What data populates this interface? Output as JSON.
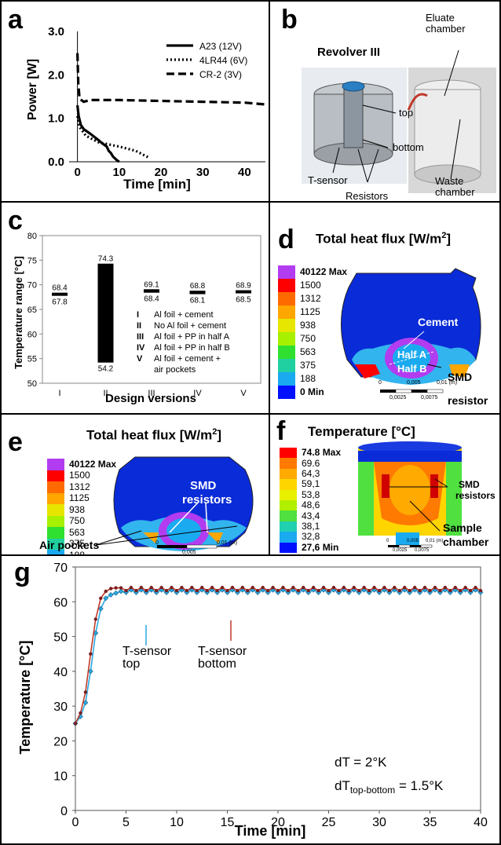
{
  "panels": {
    "a": {
      "label": "a"
    },
    "b": {
      "label": "b",
      "title": "Revolver III",
      "callouts": [
        "Eluate chamber",
        "top",
        "bottom",
        "T-sensor",
        "Resistors",
        "Waste chamber"
      ]
    },
    "c": {
      "label": "c",
      "legend": [
        {
          "num": "I",
          "text": "Al foil + cement"
        },
        {
          "num": "II",
          "text": "No Al foil + cement"
        },
        {
          "num": "III",
          "text": "Al foil + PP in half A"
        },
        {
          "num": "IV",
          "text": "Al foil + PP in half B"
        },
        {
          "num": "V",
          "text": "Al foil + cement +"
        },
        {
          "num": "",
          "text": "air pockets"
        }
      ]
    },
    "d": {
      "label": "d",
      "title": "Total heat flux [W/m",
      "title_sup": "2",
      "title_end": "]",
      "scale": [
        "40122 Max",
        "1500",
        "1312",
        "1125",
        "938",
        "750",
        "563",
        "375",
        "188",
        "0 Min"
      ],
      "annotations": [
        "Cement",
        "Half A",
        "Half B",
        "SMD",
        "resistor"
      ],
      "ruler": [
        "0",
        "0,005",
        "0,01 (m)",
        "0,0025",
        "0,0075"
      ]
    },
    "e": {
      "label": "e",
      "title": "Total heat flux [W/m",
      "title_sup": "2",
      "title_end": "]",
      "scale": [
        "40122 Max",
        "1500",
        "1312",
        "1125",
        "938",
        "750",
        "563",
        "375",
        "188",
        "0 Min"
      ],
      "annotations": [
        "SMD",
        "resistors",
        "Air pockets"
      ],
      "ruler": [
        "0",
        "0,005",
        "0,01 (m)"
      ]
    },
    "f": {
      "label": "f",
      "title": "Temperature [°C]",
      "scale": [
        "74.8 Max",
        "69.6",
        "64,3",
        "59,1",
        "53,8",
        "48,6",
        "43,4",
        "38,1",
        "32,8",
        "27,6 Min"
      ],
      "annotations": [
        "SMD",
        "resistors",
        "Sample",
        "chamber"
      ],
      "ruler": [
        "0",
        "0,005",
        "0,01 (m)",
        "0,0025",
        "0,0075"
      ]
    },
    "g": {
      "label": "g",
      "annotations": {
        "top_a": "T-sensor",
        "top_b": "top",
        "bot_a": "T-sensor",
        "bot_b": "bottom",
        "dt": "dT = 2°K",
        "dt2_a": "dT",
        "dt2_sub": "top-bottom",
        "dt2_b": " = 1.5°K"
      }
    }
  },
  "scale_colors": [
    "#b23cf0",
    "#ff0000",
    "#ff6a00",
    "#ffa600",
    "#e6e600",
    "#a6f000",
    "#30e030",
    "#20d0a0",
    "#1aaaf0",
    "#0010ff"
  ],
  "temp_colors": [
    "#ff0000",
    "#ff7a00",
    "#ffaa00",
    "#ffd500",
    "#e8f000",
    "#b0f000",
    "#50e040",
    "#20d0b0",
    "#1aaaf0",
    "#0010ff"
  ],
  "chart_data": [
    {
      "type": "line",
      "panel": "a",
      "xlabel": "Time [min]",
      "ylabel": "Power [W]",
      "xlim": [
        -2,
        45
      ],
      "ylim": [
        0,
        3
      ],
      "xticks": [
        0,
        10,
        20,
        30,
        40
      ],
      "yticks": [
        "0.0",
        "1.0",
        "2.0",
        "3.0"
      ],
      "series": [
        {
          "name": "A23 (12V)",
          "style": "solid",
          "points": [
            [
              0,
              1.3
            ],
            [
              0.3,
              1.05
            ],
            [
              0.8,
              0.85
            ],
            [
              1.5,
              0.75
            ],
            [
              3,
              0.65
            ],
            [
              5,
              0.5
            ],
            [
              6,
              0.42
            ],
            [
              7,
              0.35
            ],
            [
              7.5,
              0.25
            ],
            [
              8,
              0.2
            ],
            [
              8.5,
              0.12
            ],
            [
              9.5,
              0.03
            ],
            [
              10,
              0
            ]
          ]
        },
        {
          "name": "4LR44 (6V)",
          "style": "dotted",
          "points": [
            [
              0,
              1.05
            ],
            [
              0.5,
              0.8
            ],
            [
              2,
              0.6
            ],
            [
              5,
              0.45
            ],
            [
              10,
              0.35
            ],
            [
              14,
              0.25
            ],
            [
              17,
              0.1
            ]
          ]
        },
        {
          "name": "CR-2 (3V)",
          "style": "dashed",
          "points": [
            [
              0,
              2.5
            ],
            [
              0.2,
              1.8
            ],
            [
              0.5,
              1.45
            ],
            [
              1.5,
              1.38
            ],
            [
              3,
              1.42
            ],
            [
              10,
              1.42
            ],
            [
              20,
              1.4
            ],
            [
              30,
              1.38
            ],
            [
              40,
              1.36
            ],
            [
              45,
              1.32
            ]
          ]
        }
      ]
    },
    {
      "type": "bar",
      "panel": "c",
      "xlabel": "Design versions",
      "ylabel": "Temperature range [°C]",
      "categories": [
        "I",
        "II",
        "III",
        "IV",
        "V"
      ],
      "ylim": [
        50,
        80
      ],
      "yticks": [
        50,
        55,
        60,
        65,
        70,
        75,
        80
      ],
      "ranges": [
        {
          "low": 67.8,
          "high": 68.4,
          "low_label": "67.8",
          "high_label": "68.4"
        },
        {
          "low": 54.2,
          "high": 74.3,
          "low_label": "54.2",
          "high_label": "74.3"
        },
        {
          "low": 68.4,
          "high": 69.1,
          "low_label": "68.4",
          "high_label": "69.1"
        },
        {
          "low": 68.1,
          "high": 68.8,
          "low_label": "68.1",
          "high_label": "68.8"
        },
        {
          "low": 68.5,
          "high": 68.9,
          "low_label": "68.5",
          "high_label": "68.9"
        }
      ]
    },
    {
      "type": "line",
      "panel": "g",
      "xlabel": "Time [min]",
      "ylabel": "Temperature [°C]",
      "xlim": [
        0,
        40
      ],
      "ylim": [
        0,
        70
      ],
      "xticks": [
        0,
        5,
        10,
        15,
        20,
        25,
        30,
        35,
        40
      ],
      "yticks": [
        0,
        10,
        20,
        30,
        40,
        50,
        60,
        70
      ],
      "series": [
        {
          "name": "top",
          "color": "#29a9e0",
          "x": [
            0,
            0.5,
            1,
            1.5,
            2,
            2.5,
            3,
            3.5,
            4,
            4.5
          ],
          "y": [
            25,
            27,
            31,
            40,
            51,
            58,
            61,
            62,
            62.5,
            63
          ]
        },
        {
          "name": "bottom",
          "color": "#c0392b",
          "x": [
            0,
            0.5,
            1,
            1.5,
            2,
            2.5,
            3,
            3.5,
            4,
            4.5
          ],
          "y": [
            25,
            28,
            34,
            45,
            55,
            61,
            63,
            63.8,
            64,
            64
          ]
        }
      ],
      "plateau": {
        "start": 4.5,
        "end": 40,
        "step": 0.5,
        "top": 63,
        "bottom": 63.6
      }
    }
  ]
}
